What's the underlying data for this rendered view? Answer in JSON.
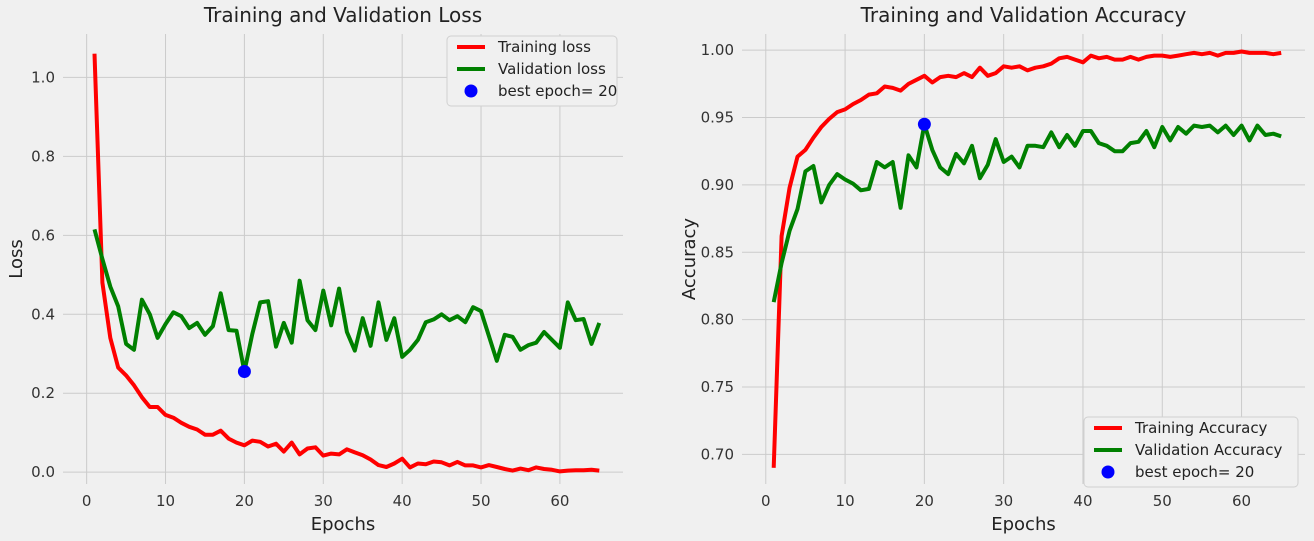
{
  "chart_data": [
    {
      "type": "line",
      "title": "Training and Validation Loss",
      "xlabel": "Epochs",
      "ylabel": "Loss",
      "xlim": [
        -3,
        68
      ],
      "ylim": [
        -0.03,
        1.11
      ],
      "xticks": [
        0,
        10,
        20,
        30,
        40,
        50,
        60
      ],
      "yticks": [
        0.0,
        0.2,
        0.4,
        0.6,
        0.8,
        1.0
      ],
      "ytick_labels": [
        "0.0",
        "0.2",
        "0.4",
        "0.6",
        "0.8",
        "1.0"
      ],
      "grid": true,
      "legend_position": "top-right",
      "x": [
        1,
        2,
        3,
        4,
        5,
        6,
        7,
        8,
        9,
        10,
        11,
        12,
        13,
        14,
        15,
        16,
        17,
        18,
        19,
        20,
        21,
        22,
        23,
        24,
        25,
        26,
        27,
        28,
        29,
        30,
        31,
        32,
        33,
        34,
        35,
        36,
        37,
        38,
        39,
        40,
        41,
        42,
        43,
        44,
        45,
        46,
        47,
        48,
        49,
        50,
        51,
        52,
        53,
        54,
        55,
        56,
        57,
        58,
        59,
        60,
        61,
        62,
        63,
        64,
        65
      ],
      "series": [
        {
          "name": "Training loss",
          "color": "#ff0000",
          "values": [
            1.06,
            0.48,
            0.34,
            0.265,
            0.245,
            0.22,
            0.19,
            0.165,
            0.165,
            0.145,
            0.138,
            0.125,
            0.115,
            0.108,
            0.095,
            0.095,
            0.105,
            0.085,
            0.075,
            0.068,
            0.08,
            0.077,
            0.065,
            0.072,
            0.052,
            0.075,
            0.045,
            0.06,
            0.063,
            0.042,
            0.047,
            0.045,
            0.058,
            0.05,
            0.043,
            0.032,
            0.018,
            0.013,
            0.022,
            0.034,
            0.012,
            0.022,
            0.02,
            0.027,
            0.025,
            0.017,
            0.026,
            0.017,
            0.017,
            0.012,
            0.018,
            0.013,
            0.008,
            0.004,
            0.009,
            0.005,
            0.012,
            0.008,
            0.006,
            0.002,
            0.004,
            0.005,
            0.005,
            0.006,
            0.004
          ]
        },
        {
          "name": "Validation loss",
          "color": "#008000",
          "values": [
            0.615,
            0.54,
            0.47,
            0.42,
            0.325,
            0.31,
            0.437,
            0.4,
            0.34,
            0.375,
            0.405,
            0.395,
            0.365,
            0.378,
            0.348,
            0.37,
            0.453,
            0.36,
            0.358,
            0.255,
            0.35,
            0.43,
            0.433,
            0.318,
            0.378,
            0.328,
            0.485,
            0.385,
            0.36,
            0.46,
            0.372,
            0.465,
            0.355,
            0.308,
            0.39,
            0.32,
            0.43,
            0.335,
            0.39,
            0.292,
            0.31,
            0.335,
            0.38,
            0.387,
            0.4,
            0.385,
            0.395,
            0.38,
            0.418,
            0.408,
            0.345,
            0.282,
            0.348,
            0.343,
            0.31,
            0.322,
            0.328,
            0.355,
            0.335,
            0.315,
            0.43,
            0.385,
            0.388,
            0.325,
            0.378
          ]
        }
      ],
      "best_point": {
        "label": "best epoch= 20",
        "x": 20,
        "y": 0.255,
        "color": "#0000ff"
      }
    },
    {
      "type": "line",
      "title": "Training and Validation Accuracy",
      "xlabel": "Epochs",
      "ylabel": "Accuracy",
      "xlim": [
        -3,
        68
      ],
      "ylim": [
        0.678,
        1.012
      ],
      "xticks": [
        0,
        10,
        20,
        30,
        40,
        50,
        60
      ],
      "yticks": [
        0.7,
        0.75,
        0.8,
        0.85,
        0.9,
        0.95,
        1.0
      ],
      "ytick_labels": [
        "0.70",
        "0.75",
        "0.80",
        "0.85",
        "0.90",
        "0.95",
        "1.00"
      ],
      "grid": true,
      "legend_position": "bottom-right",
      "x": [
        1,
        2,
        3,
        4,
        5,
        6,
        7,
        8,
        9,
        10,
        11,
        12,
        13,
        14,
        15,
        16,
        17,
        18,
        19,
        20,
        21,
        22,
        23,
        24,
        25,
        26,
        27,
        28,
        29,
        30,
        31,
        32,
        33,
        34,
        35,
        36,
        37,
        38,
        39,
        40,
        41,
        42,
        43,
        44,
        45,
        46,
        47,
        48,
        49,
        50,
        51,
        52,
        53,
        54,
        55,
        56,
        57,
        58,
        59,
        60,
        61,
        62,
        63,
        64,
        65
      ],
      "series": [
        {
          "name": "Training Accuracy",
          "color": "#ff0000",
          "values": [
            0.69,
            0.862,
            0.898,
            0.921,
            0.926,
            0.935,
            0.943,
            0.949,
            0.954,
            0.956,
            0.96,
            0.963,
            0.967,
            0.968,
            0.973,
            0.972,
            0.97,
            0.975,
            0.978,
            0.981,
            0.976,
            0.98,
            0.981,
            0.98,
            0.983,
            0.98,
            0.987,
            0.981,
            0.983,
            0.988,
            0.987,
            0.988,
            0.985,
            0.987,
            0.988,
            0.99,
            0.994,
            0.995,
            0.993,
            0.991,
            0.996,
            0.994,
            0.995,
            0.993,
            0.993,
            0.995,
            0.993,
            0.995,
            0.996,
            0.996,
            0.995,
            0.996,
            0.997,
            0.998,
            0.997,
            0.998,
            0.996,
            0.998,
            0.998,
            0.999,
            0.998,
            0.998,
            0.998,
            0.997,
            0.998
          ]
        },
        {
          "name": "Validation Accuracy",
          "color": "#008000",
          "values": [
            0.813,
            0.842,
            0.866,
            0.882,
            0.91,
            0.914,
            0.887,
            0.9,
            0.908,
            0.904,
            0.901,
            0.896,
            0.897,
            0.917,
            0.913,
            0.917,
            0.883,
            0.922,
            0.913,
            0.945,
            0.926,
            0.913,
            0.908,
            0.923,
            0.916,
            0.929,
            0.905,
            0.915,
            0.934,
            0.917,
            0.921,
            0.913,
            0.929,
            0.929,
            0.928,
            0.939,
            0.928,
            0.937,
            0.929,
            0.94,
            0.94,
            0.931,
            0.929,
            0.925,
            0.925,
            0.931,
            0.932,
            0.94,
            0.928,
            0.943,
            0.933,
            0.943,
            0.938,
            0.944,
            0.943,
            0.944,
            0.939,
            0.944,
            0.937,
            0.944,
            0.933,
            0.944,
            0.937,
            0.938,
            0.936
          ]
        }
      ],
      "best_point": {
        "label": "best epoch= 20",
        "x": 20,
        "y": 0.945,
        "color": "#0000ff"
      }
    }
  ]
}
